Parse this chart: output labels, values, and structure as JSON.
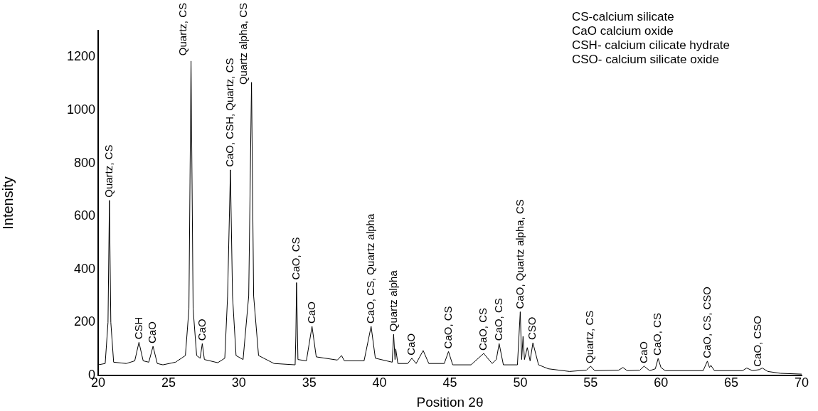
{
  "chart_data": {
    "type": "line",
    "xlabel": "Position 2θ",
    "ylabel": "Intensity",
    "x": [
      20.0,
      20.5,
      20.7,
      20.8,
      20.9,
      21.1,
      22.0,
      22.6,
      22.9,
      23.2,
      23.6,
      23.9,
      24.2,
      24.6,
      25.5,
      26.2,
      26.45,
      26.6,
      26.75,
      27.0,
      27.25,
      27.4,
      27.55,
      28.5,
      29.0,
      29.2,
      29.4,
      29.55,
      29.8,
      30.3,
      30.7,
      30.9,
      31.05,
      31.4,
      32.5,
      34.0,
      34.05,
      34.1,
      34.2,
      34.8,
      35.2,
      35.5,
      37.0,
      37.3,
      37.5,
      38.9,
      39.4,
      39.7,
      40.9,
      41.0,
      41.1,
      41.15,
      41.3,
      42.0,
      42.3,
      42.6,
      43.1,
      43.5,
      44.6,
      44.9,
      45.2,
      46.5,
      47.4,
      48.0,
      48.3,
      48.5,
      48.8,
      49.8,
      50.0,
      50.1,
      50.2,
      50.3,
      50.5,
      50.7,
      50.9,
      51.3,
      52.0,
      53.5,
      54.7,
      55.0,
      55.3,
      57.0,
      57.3,
      57.6,
      58.5,
      58.8,
      59.2,
      59.6,
      59.8,
      60.0,
      60.3,
      63.0,
      63.3,
      63.45,
      63.55,
      63.8,
      65.8,
      66.1,
      66.5,
      67.0,
      67.2,
      67.6,
      68.5,
      70.0
    ],
    "series": [
      {
        "color": "#000000",
        "values": [
          40,
          45,
          200,
          660,
          200,
          50,
          45,
          55,
          125,
          55,
          50,
          110,
          45,
          40,
          50,
          75,
          250,
          1185,
          250,
          75,
          65,
          120,
          60,
          48,
          65,
          300,
          775,
          300,
          75,
          60,
          300,
          1105,
          300,
          75,
          45,
          40,
          150,
          350,
          60,
          55,
          185,
          70,
          58,
          75,
          55,
          55,
          185,
          65,
          50,
          155,
          60,
          100,
          45,
          45,
          65,
          45,
          94,
          45,
          45,
          90,
          40,
          40,
          83,
          45,
          60,
          120,
          40,
          40,
          240,
          60,
          147,
          60,
          105,
          55,
          123,
          40,
          25,
          15,
          20,
          35,
          18,
          20,
          30,
          18,
          20,
          35,
          18,
          25,
          64,
          30,
          18,
          18,
          54,
          30,
          38,
          18,
          18,
          28,
          18,
          22,
          28,
          15,
          8,
          5
        ]
      }
    ],
    "xlim": [
      20,
      70
    ],
    "xticks": [
      20,
      25,
      30,
      35,
      40,
      45,
      50,
      55,
      60,
      65,
      70
    ],
    "ylim": [
      0,
      1300
    ],
    "yticks": [
      0,
      200,
      400,
      600,
      800,
      1000,
      1200
    ],
    "grid": false,
    "legend": false,
    "marker": "none",
    "line_style": "solid",
    "annotations": [
      "CS-calcium silicate",
      "CaO calcium oxide",
      "CSH- calcium cilicate hydrate",
      "CSO- calcium silicate oxide",
      {
        "text": "Quartz, CS",
        "x": 20.8,
        "y": 660
      },
      {
        "text": "CSH",
        "x": 22.9,
        "y": 125
      },
      {
        "text": "CaO",
        "x": 23.9,
        "y": 110
      },
      {
        "text": "Quartz, CS",
        "x": 26.6,
        "y": 1185
      },
      {
        "text": "CaO",
        "x": 27.4,
        "y": 120
      },
      {
        "text": "CaO, CSH, Quartz, CS",
        "x": 29.4,
        "y": 775
      },
      {
        "text": "Quartz alpha, CS",
        "x": 30.9,
        "y": 1105
      },
      {
        "text": "CaO, CS",
        "x": 34.1,
        "y": 350
      },
      {
        "text": "CaO",
        "x": 35.2,
        "y": 185
      },
      {
        "text": "CaO, CS, Quartz alpha",
        "x": 39.4,
        "y": 185
      },
      {
        "text": "Quartz alpha",
        "x": 41.0,
        "y": 155
      },
      {
        "text": "CaO",
        "x": 42.3,
        "y": 65
      },
      {
        "text": "CaO, CS",
        "x": 44.9,
        "y": 90
      },
      {
        "text": "CaO, CS",
        "x": 47.4,
        "y": 83
      },
      {
        "text": "CaO, CS",
        "x": 48.5,
        "y": 120
      },
      {
        "text": "CaO, Quartz alpha, CS",
        "x": 50.0,
        "y": 240
      },
      {
        "text": "CSO",
        "x": 50.9,
        "y": 123
      },
      {
        "text": "Quartz, CS",
        "x": 55.0,
        "y": 35
      },
      {
        "text": "CaO",
        "x": 58.8,
        "y": 35
      },
      {
        "text": "CaO, CS",
        "x": 59.8,
        "y": 64
      },
      {
        "text": "CaO, CS, CSO",
        "x": 63.3,
        "y": 54
      },
      {
        "text": "CaO, CSO",
        "x": 66.9,
        "y": 22
      }
    ]
  }
}
